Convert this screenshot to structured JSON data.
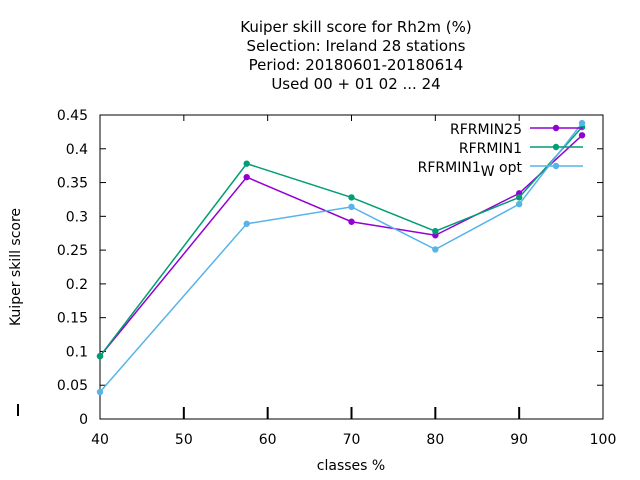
{
  "chart_data": {
    "type": "line",
    "title_lines": [
      "Kuiper skill score  for Rh2m (%)",
      "Selection: Ireland     28 stations",
      "Period: 20180601-20180614",
      "Used  00 + 01 02 ... 24"
    ],
    "xlabel": "classes %",
    "ylabel": "Kuiper skill score",
    "xlim": [
      40,
      100
    ],
    "ylim": [
      0,
      0.45
    ],
    "xticks": [
      40,
      50,
      60,
      70,
      80,
      90,
      100
    ],
    "xtick_labels": [
      "40",
      "50",
      "60",
      "70",
      "80",
      "90",
      "100"
    ],
    "yticks": [
      0,
      0.05,
      0.1,
      0.15,
      0.2,
      0.25,
      0.3,
      0.35,
      0.4,
      0.45
    ],
    "ytick_labels": [
      "0",
      "0.05",
      "0.1",
      "0.15",
      "0.2",
      "0.25",
      "0.3",
      "0.35",
      "0.4",
      "0.45"
    ],
    "grid": false,
    "legend_position": "top-right",
    "x": [
      40,
      57.5,
      70,
      80,
      90,
      97.5
    ],
    "series": [
      {
        "name": "RFRMIN25",
        "color": "#9400d3",
        "values": [
          0.093,
          0.358,
          0.292,
          0.272,
          0.334,
          0.42
        ]
      },
      {
        "name": "RFRMIN1",
        "color": "#009e73",
        "values": [
          0.093,
          0.378,
          0.328,
          0.278,
          0.328,
          0.432
        ]
      },
      {
        "name": "RFRMIN1",
        "name_subscript": "W",
        "name_suffix": " opt",
        "color": "#56b4e9",
        "values": [
          0.04,
          0.289,
          0.314,
          0.251,
          0.318,
          0.438
        ]
      }
    ]
  }
}
